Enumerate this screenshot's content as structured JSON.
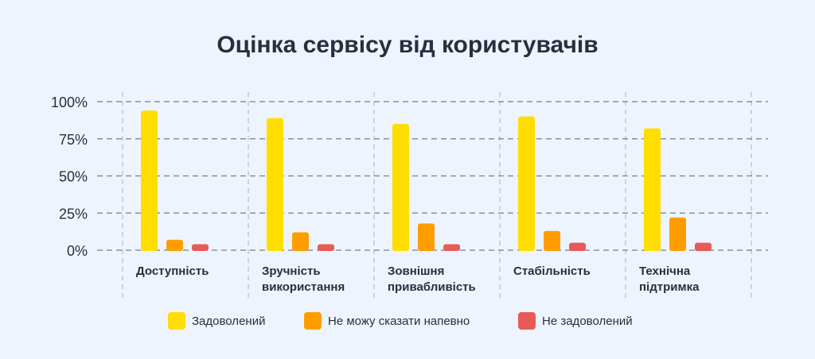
{
  "chart_data": {
    "type": "bar",
    "title": "Оцінка сервісу від користувачів",
    "categories": [
      [
        "Доступність"
      ],
      [
        "Зручність",
        "використання"
      ],
      [
        "Зовнішня",
        "привабливість"
      ],
      [
        "Стабільність"
      ],
      [
        "Технічна",
        "підтримка"
      ]
    ],
    "series": [
      {
        "name": "Задоволений",
        "color": "#ffdd00",
        "values": [
          94,
          89,
          85,
          90,
          82
        ]
      },
      {
        "name": "Не можу сказати напевно",
        "color": "#ff9d00",
        "values": [
          7,
          12,
          18,
          13,
          22
        ]
      },
      {
        "name": "Не задоволений",
        "color": "#e85a57",
        "values": [
          4,
          4,
          4,
          5,
          5
        ]
      }
    ],
    "yticks": [
      "0%",
      "25%",
      "50%",
      "75%",
      "100%"
    ],
    "ylim": [
      0,
      100
    ],
    "grid": true,
    "legend_position": "bottom"
  }
}
